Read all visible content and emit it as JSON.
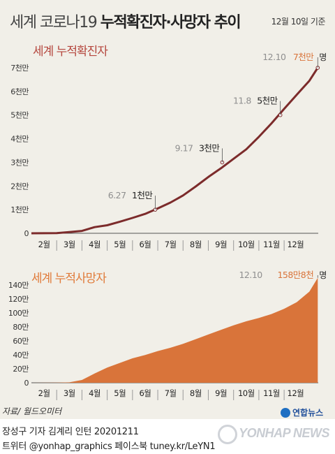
{
  "header": {
    "title_light": "세계 코로나19",
    "title_bold": "누적확진자·사망자 추이",
    "basis": "12월 10일 기준"
  },
  "source": "자료/ 월드오미터",
  "footer": {
    "credit_line1": "장성구 기자  김계리 인턴  20201211",
    "credit_line2": "트위터 @yonhap_graphics  페이스북 tuney.kr/LeYN1",
    "logo_small": "연합뉴스",
    "logo_big": "YONHAP NEWS"
  },
  "colors": {
    "background": "#f1efe8",
    "cases_line": "#7c2b2b",
    "cases_title": "#b5473e",
    "deaths_fill": "#d9743a",
    "deaths_title": "#e07b3a",
    "annotation_date": "#8f8f8f",
    "annotation_value_highlight": "#d9743a"
  },
  "chart_data": [
    {
      "type": "line",
      "title": "세계 누적확진자",
      "unit": "명",
      "x_ticks": [
        "2월",
        "3월",
        "4월",
        "5월",
        "6월",
        "7월",
        "8월",
        "9월",
        "10월",
        "11월",
        "12월"
      ],
      "y_ticks": [
        "0",
        "1천만",
        "2천만",
        "3천만",
        "4천만",
        "5천만",
        "6천만",
        "7천만"
      ],
      "ylim": [
        0,
        70000000
      ],
      "xlim": [
        1,
        12.35
      ],
      "grid": false,
      "series": [
        {
          "x": [
            1,
            2.0,
            2.5,
            3.0,
            3.5,
            4.0,
            4.5,
            5.0,
            5.5,
            6.0,
            6.5,
            7.0,
            7.5,
            8.0,
            8.5,
            9.0,
            9.5,
            10.0,
            10.5,
            11.0,
            11.5,
            12.0,
            12.33
          ],
          "y": [
            0,
            80000,
            500000,
            1000000,
            2600000,
            3400000,
            4900000,
            6500000,
            8200000,
            10500000,
            13000000,
            16000000,
            19800000,
            23800000,
            27500000,
            31500000,
            35500000,
            40800000,
            46500000,
            52600000,
            58600000,
            64500000,
            70000000
          ]
        }
      ],
      "annotations": [
        {
          "date": "6.27",
          "value": "1천만",
          "x": 5.9,
          "y": 10000000
        },
        {
          "date": "9.17",
          "value": "3천만",
          "x": 8.55,
          "y": 30000000
        },
        {
          "date": "11.8",
          "value": "5천만",
          "x": 10.85,
          "y": 50000000
        },
        {
          "date": "12.10",
          "value": "7천만",
          "x": 12.33,
          "y": 70000000,
          "highlight": true
        }
      ]
    },
    {
      "type": "area",
      "title": "세계 누적사망자",
      "unit": "명",
      "x_ticks": [
        "2월",
        "3월",
        "4월",
        "5월",
        "6월",
        "7월",
        "8월",
        "9월",
        "10월",
        "11월",
        "12월"
      ],
      "y_ticks": [
        "0",
        "20만",
        "40만",
        "60만",
        "80만",
        "100만",
        "120만",
        "140만"
      ],
      "ylim": [
        0,
        1480000
      ],
      "xlim": [
        1,
        12.35
      ],
      "grid": false,
      "series": [
        {
          "x": [
            1,
            2.0,
            2.5,
            3.0,
            3.5,
            4.0,
            4.5,
            5.0,
            5.5,
            6.0,
            6.5,
            7.0,
            7.5,
            8.0,
            8.5,
            9.0,
            9.5,
            10.0,
            10.5,
            11.0,
            11.5,
            12.0,
            12.33
          ],
          "y": [
            0,
            2500,
            6000,
            42000,
            140000,
            230000,
            300000,
            370000,
            420000,
            480000,
            530000,
            590000,
            660000,
            730000,
            800000,
            870000,
            930000,
            980000,
            1040000,
            1120000,
            1220000,
            1380000,
            1588000
          ]
        }
      ],
      "annotations": [
        {
          "date": "12.10",
          "value": "158만8천",
          "x": 12.33,
          "y": 1588000,
          "highlight": true
        }
      ]
    }
  ]
}
